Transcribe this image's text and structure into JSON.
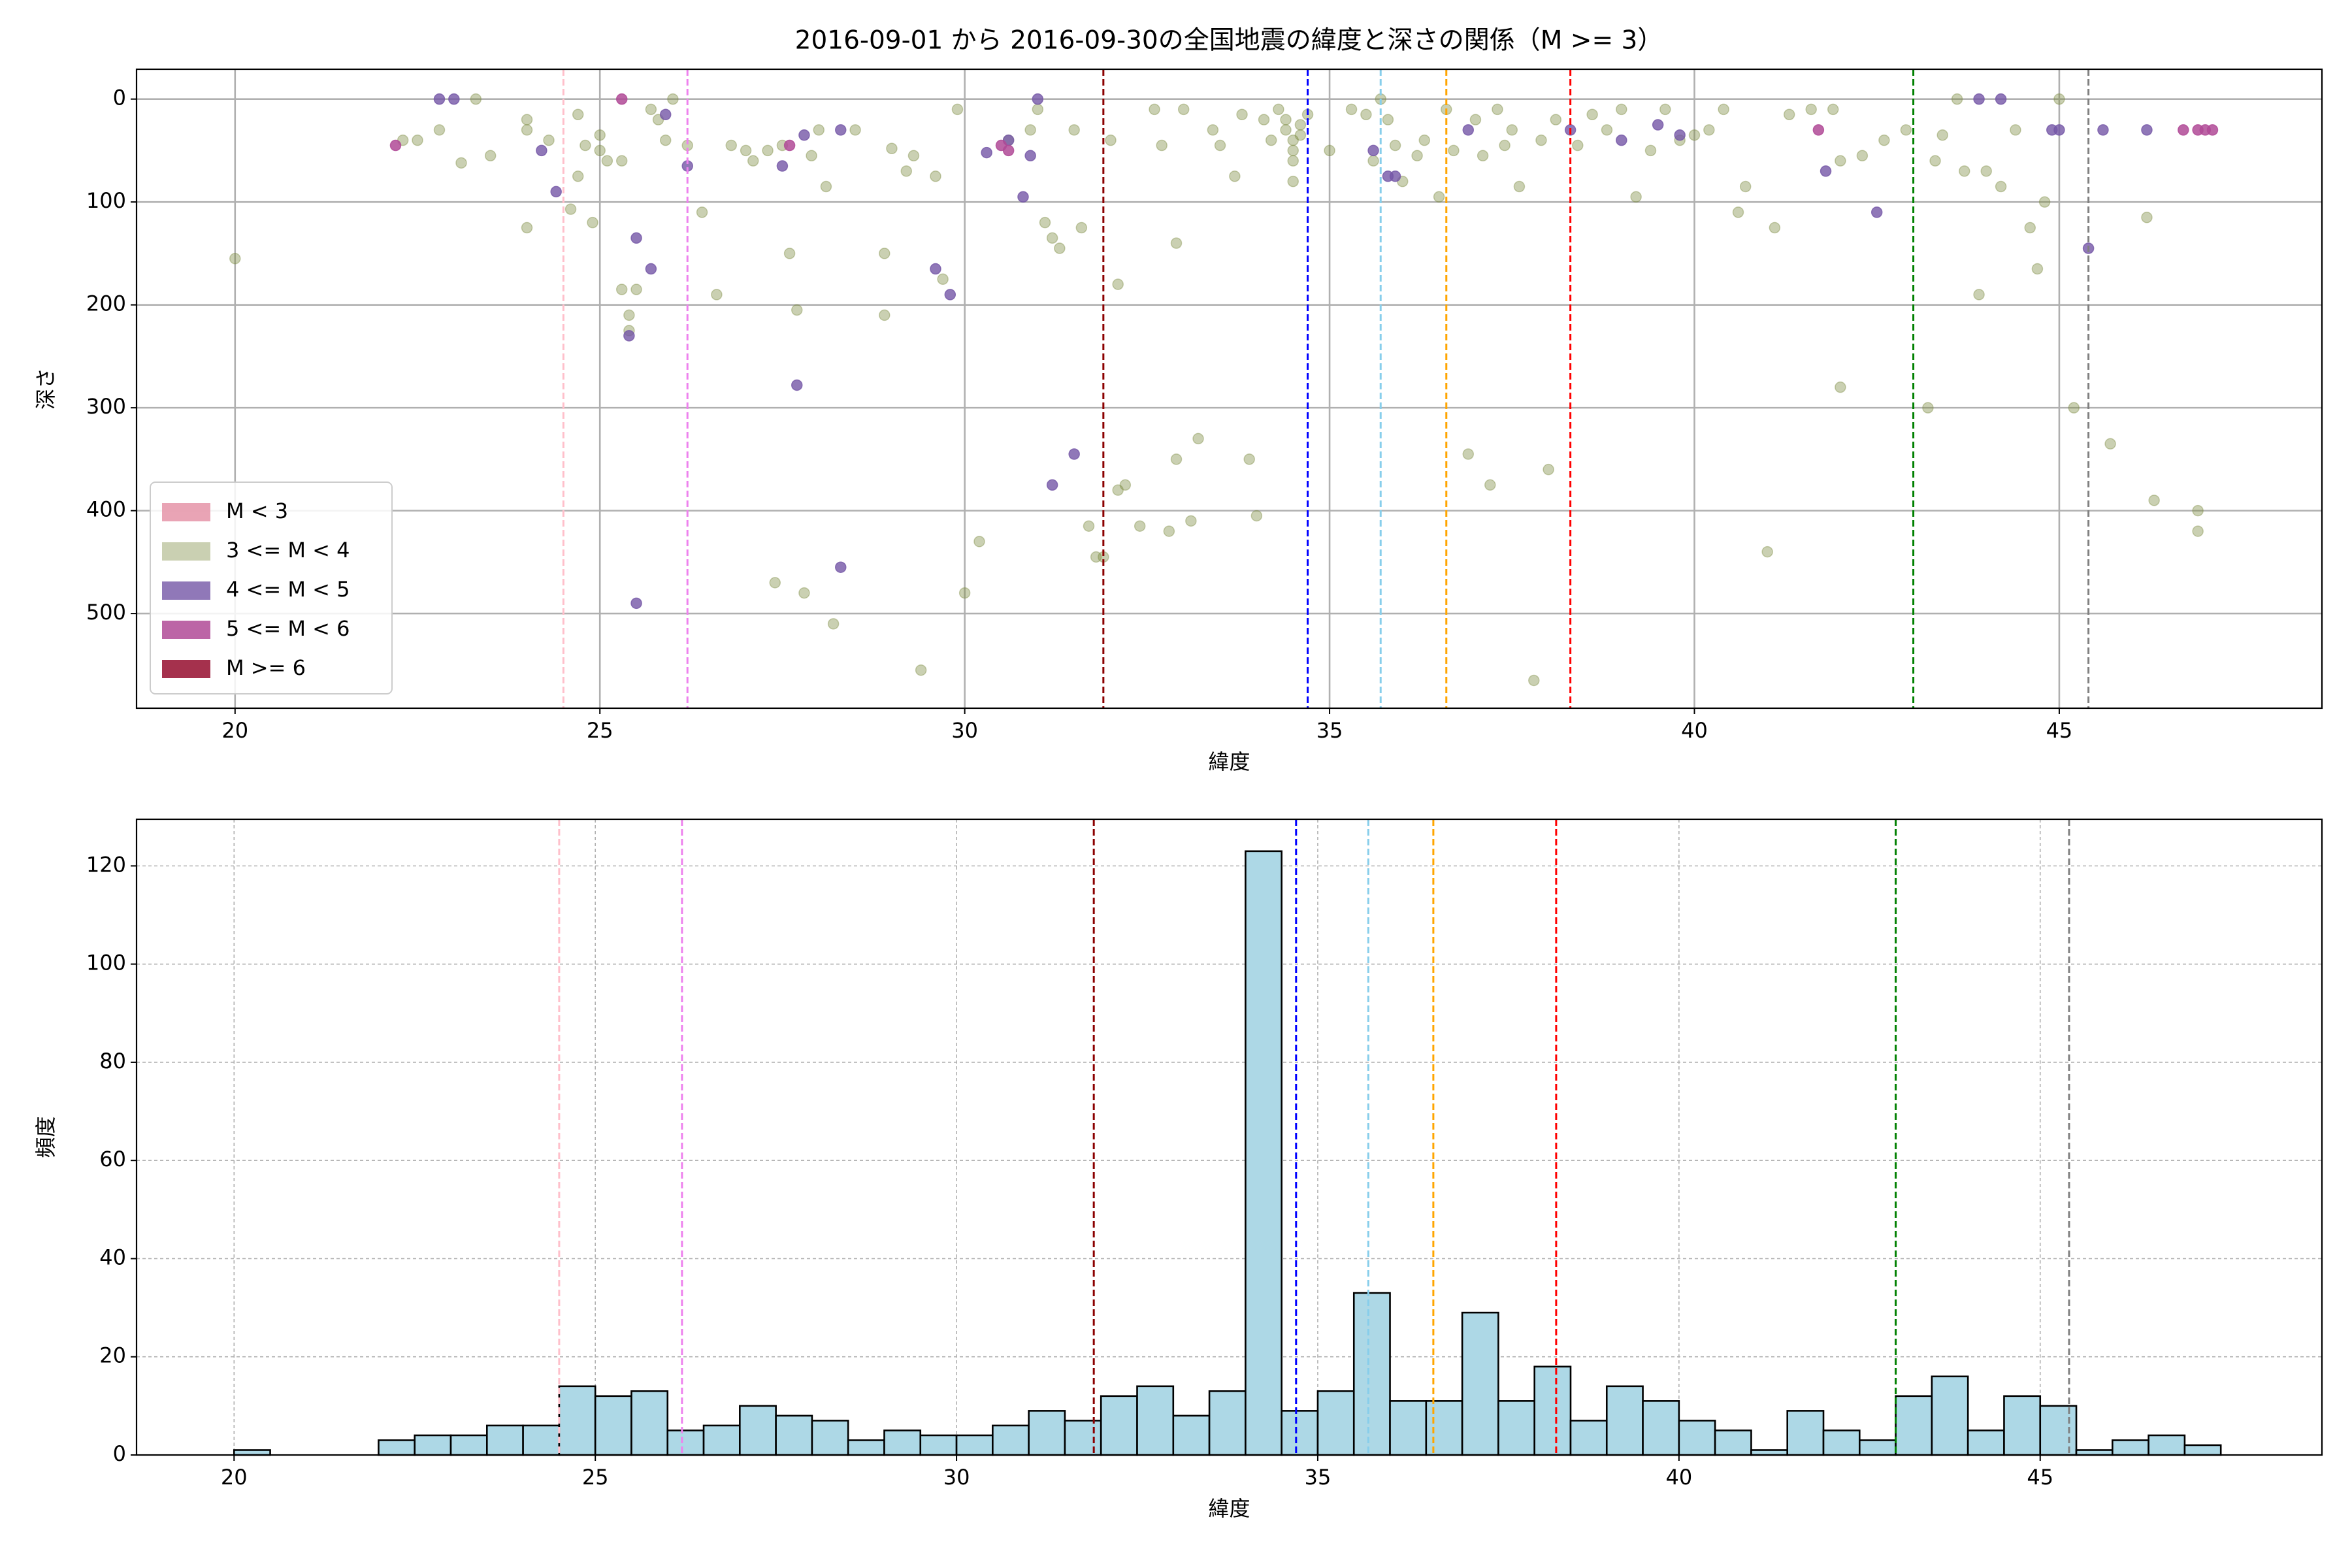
{
  "chart_data": [
    {
      "type": "scatter",
      "title": "2016-09-01 から 2016-09-30の全国地震の緯度と深さの関係（M >= 3）",
      "x_label": "緯度",
      "y_label": "深さ",
      "xlim": [
        18.65,
        48.6
      ],
      "xticks": [
        20,
        25,
        30,
        35,
        40,
        45
      ],
      "ylim": [
        -29,
        592
      ],
      "yticks": [
        0,
        100,
        200,
        300,
        400,
        500
      ],
      "y_inverted": true,
      "grid": true,
      "grid_style": "solid",
      "legend": "lower left",
      "series": [
        {
          "name": "M < 3",
          "color": "#e79aad",
          "alpha": 0.9,
          "x": [],
          "values": []
        },
        {
          "name": "3 <= M < 4",
          "color": "#7a8a3f",
          "alpha": 0.4,
          "x": [
            20.0,
            22.3,
            22.5,
            22.8,
            23.1,
            23.3,
            23.5,
            24.0,
            24.0,
            24.0,
            24.3,
            24.6,
            24.7,
            24.7,
            24.8,
            24.9,
            25.0,
            25.0,
            25.1,
            25.3,
            25.3,
            25.4,
            25.4,
            25.5,
            25.7,
            25.8,
            25.9,
            26.0,
            26.2,
            26.4,
            26.6,
            26.8,
            27.0,
            27.1,
            27.3,
            27.4,
            27.5,
            27.6,
            27.7,
            27.8,
            27.9,
            28.0,
            28.1,
            28.2,
            28.5,
            28.9,
            28.9,
            29.0,
            29.2,
            29.3,
            29.4,
            29.6,
            29.7,
            29.9,
            30.0,
            30.2,
            30.6,
            30.9,
            31.0,
            31.1,
            31.2,
            31.3,
            31.5,
            31.6,
            31.7,
            31.8,
            31.9,
            32.0,
            32.1,
            32.1,
            32.2,
            32.4,
            32.6,
            32.7,
            32.8,
            32.9,
            32.9,
            33.0,
            33.1,
            33.2,
            33.4,
            33.5,
            33.7,
            33.8,
            33.9,
            34.0,
            34.1,
            34.2,
            34.3,
            34.4,
            34.4,
            34.5,
            34.5,
            34.5,
            34.5,
            34.6,
            34.6,
            34.7,
            35.0,
            35.3,
            35.5,
            35.6,
            35.7,
            35.8,
            35.9,
            36.0,
            36.2,
            36.3,
            36.5,
            36.6,
            36.7,
            36.9,
            37.0,
            37.1,
            37.2,
            37.3,
            37.4,
            37.5,
            37.6,
            37.8,
            37.9,
            38.0,
            38.1,
            38.4,
            38.6,
            38.8,
            39.0,
            39.2,
            39.4,
            39.6,
            39.8,
            40.0,
            40.2,
            40.4,
            40.6,
            40.7,
            41.0,
            41.1,
            41.3,
            41.6,
            41.9,
            42.0,
            42.0,
            42.3,
            42.6,
            42.9,
            43.2,
            43.3,
            43.4,
            43.6,
            43.7,
            43.9,
            44.0,
            44.2,
            44.4,
            44.6,
            44.7,
            44.8,
            45.0,
            45.2,
            45.7,
            46.2,
            46.3,
            46.9,
            46.9
          ],
          "values": [
            155,
            40,
            40,
            30,
            62,
            0,
            55,
            20,
            30,
            125,
            40,
            107,
            75,
            15,
            45,
            120,
            35,
            50,
            60,
            60,
            185,
            210,
            225,
            185,
            10,
            20,
            40,
            0,
            45,
            110,
            190,
            45,
            50,
            60,
            50,
            470,
            45,
            150,
            205,
            480,
            55,
            30,
            85,
            510,
            30,
            150,
            210,
            48,
            70,
            55,
            555,
            75,
            175,
            10,
            480,
            430,
            40,
            30,
            10,
            120,
            135,
            145,
            30,
            125,
            415,
            445,
            445,
            40,
            180,
            380,
            375,
            415,
            10,
            45,
            420,
            140,
            350,
            10,
            410,
            330,
            30,
            45,
            75,
            15,
            350,
            405,
            20,
            40,
            10,
            20,
            30,
            40,
            50,
            60,
            80,
            25,
            35,
            15,
            50,
            10,
            15,
            60,
            0,
            20,
            45,
            80,
            55,
            40,
            95,
            10,
            50,
            345,
            20,
            55,
            375,
            10,
            45,
            30,
            85,
            565,
            40,
            360,
            20,
            45,
            15,
            30,
            10,
            95,
            50,
            10,
            40,
            35,
            30,
            10,
            110,
            85,
            440,
            125,
            15,
            10,
            10,
            60,
            280,
            55,
            40,
            30,
            300,
            60,
            35,
            0,
            70,
            190,
            70,
            85,
            30,
            125,
            165,
            100,
            0,
            300,
            335,
            115,
            390,
            400,
            420
          ]
        },
        {
          "name": "4 <= M < 5",
          "color": "#7456a6",
          "alpha": 0.8,
          "x": [
            22.8,
            23.0,
            24.2,
            24.4,
            25.4,
            25.5,
            25.5,
            25.7,
            25.9,
            26.2,
            27.5,
            27.8,
            27.7,
            28.3,
            28.3,
            29.6,
            29.8,
            30.3,
            30.6,
            30.8,
            30.9,
            31.0,
            31.2,
            31.5,
            35.6,
            35.8,
            35.9,
            36.9,
            38.3,
            39.0,
            39.5,
            39.8,
            41.8,
            42.5,
            43.9,
            44.2,
            44.9,
            45.0,
            45.4,
            45.6,
            46.2
          ],
          "values": [
            0,
            0,
            50,
            90,
            230,
            490,
            135,
            165,
            15,
            65,
            65,
            35,
            278,
            455,
            30,
            165,
            190,
            52,
            40,
            95,
            55,
            0,
            375,
            345,
            50,
            75,
            75,
            30,
            30,
            40,
            25,
            35,
            70,
            110,
            0,
            0,
            30,
            30,
            145,
            30,
            30
          ]
        },
        {
          "name": "5 <= M < 6",
          "color": "#b04a97",
          "alpha": 0.85,
          "x": [
            22.2,
            25.3,
            27.6,
            30.5,
            30.6,
            41.7,
            46.7,
            46.9,
            47.0,
            47.1
          ],
          "values": [
            45,
            0,
            45,
            45,
            50,
            30,
            30,
            30,
            30,
            30
          ]
        },
        {
          "name": "M >= 6",
          "color": "#9b1b3a",
          "alpha": 0.9,
          "x": [],
          "values": []
        }
      ],
      "vlines": [
        {
          "x": 24.5,
          "color": "pink"
        },
        {
          "x": 26.2,
          "color": "violet"
        },
        {
          "x": 31.9,
          "color": "darkred"
        },
        {
          "x": 34.7,
          "color": "blue"
        },
        {
          "x": 35.7,
          "color": "skyblue"
        },
        {
          "x": 36.6,
          "color": "orange"
        },
        {
          "x": 38.3,
          "color": "red"
        },
        {
          "x": 43.0,
          "color": "green"
        },
        {
          "x": 45.4,
          "color": "gray"
        }
      ]
    },
    {
      "type": "histogram",
      "x_label": "緯度",
      "y_label": "頻度",
      "xlim": [
        18.65,
        48.9
      ],
      "xticks": [
        20,
        25,
        30,
        35,
        40,
        45
      ],
      "ylim": [
        0,
        129.5
      ],
      "yticks": [
        0,
        20,
        40,
        60,
        80,
        100,
        120
      ],
      "grid": true,
      "grid_style": "dashed",
      "color": "#add8e6",
      "bins": [
        20,
        20.5,
        21,
        21.5,
        22,
        22.5,
        23,
        23.5,
        24,
        24.5,
        25,
        25.5,
        26,
        26.5,
        27,
        27.5,
        28,
        28.5,
        29,
        29.5,
        30,
        30.5,
        31,
        31.5,
        32,
        32.5,
        33,
        33.5,
        34,
        34.5,
        35,
        35.5,
        36,
        36.5,
        37,
        37.5,
        38,
        38.5,
        39,
        39.5,
        40,
        40.5,
        41,
        41.5,
        42,
        42.5,
        43,
        43.5,
        44,
        44.5,
        45,
        45.5,
        46,
        46.5,
        47,
        47.5
      ],
      "values": [
        1,
        0,
        0,
        0,
        3,
        4,
        4,
        6,
        6,
        14,
        12,
        13,
        5,
        6,
        10,
        8,
        7,
        3,
        5,
        4,
        4,
        6,
        9,
        7,
        12,
        14,
        8,
        13,
        123,
        9,
        13,
        33,
        11,
        11,
        29,
        11,
        18,
        7,
        14,
        11,
        7,
        5,
        1,
        9,
        5,
        3,
        12,
        16,
        5,
        12,
        10,
        1,
        3,
        4,
        2
      ],
      "vlines": [
        {
          "x": 24.5,
          "color": "pink"
        },
        {
          "x": 26.2,
          "color": "violet"
        },
        {
          "x": 31.9,
          "color": "darkred"
        },
        {
          "x": 34.7,
          "color": "blue"
        },
        {
          "x": 35.7,
          "color": "skyblue"
        },
        {
          "x": 36.6,
          "color": "orange"
        },
        {
          "x": 38.3,
          "color": "red"
        },
        {
          "x": 43.0,
          "color": "green"
        },
        {
          "x": 45.4,
          "color": "gray"
        }
      ]
    }
  ]
}
